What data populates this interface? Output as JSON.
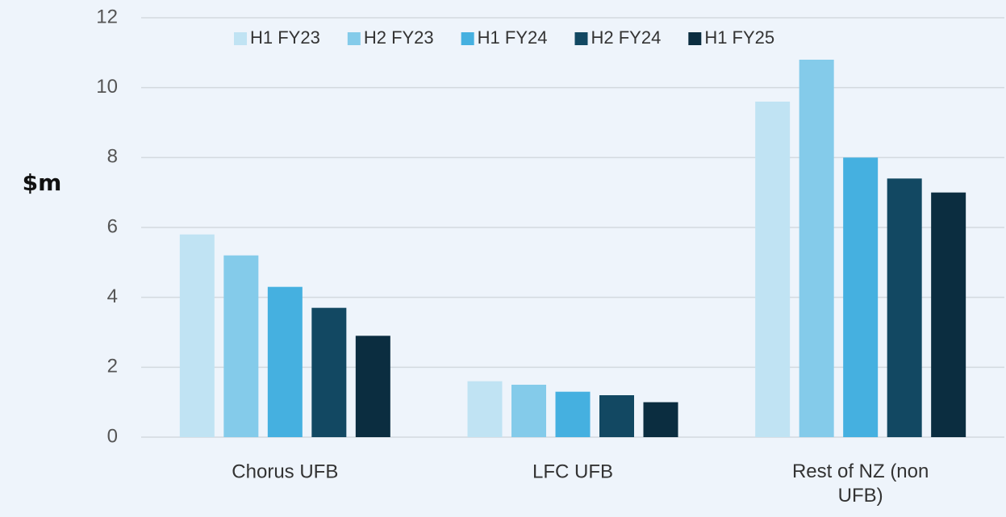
{
  "chart_data": {
    "type": "bar",
    "ylabel": "$m",
    "categories": [
      "Chorus UFB",
      "LFC UFB",
      "Rest of NZ (non UFB)"
    ],
    "series": [
      {
        "name": "H1 FY23",
        "color": "#c0e3f3",
        "values": [
          5.8,
          1.6,
          9.6
        ]
      },
      {
        "name": "H2 FY23",
        "color": "#84cbea",
        "values": [
          5.2,
          1.5,
          10.8
        ]
      },
      {
        "name": "H1 FY24",
        "color": "#45b0e0",
        "values": [
          4.3,
          1.3,
          8.0
        ]
      },
      {
        "name": "H2 FY24",
        "color": "#124862",
        "values": [
          3.7,
          1.2,
          7.4
        ]
      },
      {
        "name": "H1 FY25",
        "color": "#0b2d40",
        "values": [
          2.9,
          1.0,
          7.0
        ]
      }
    ],
    "ylim": [
      0,
      12
    ],
    "yticks": [
      0,
      2,
      4,
      6,
      8,
      10,
      12
    ],
    "grid": true,
    "legend": "top"
  }
}
